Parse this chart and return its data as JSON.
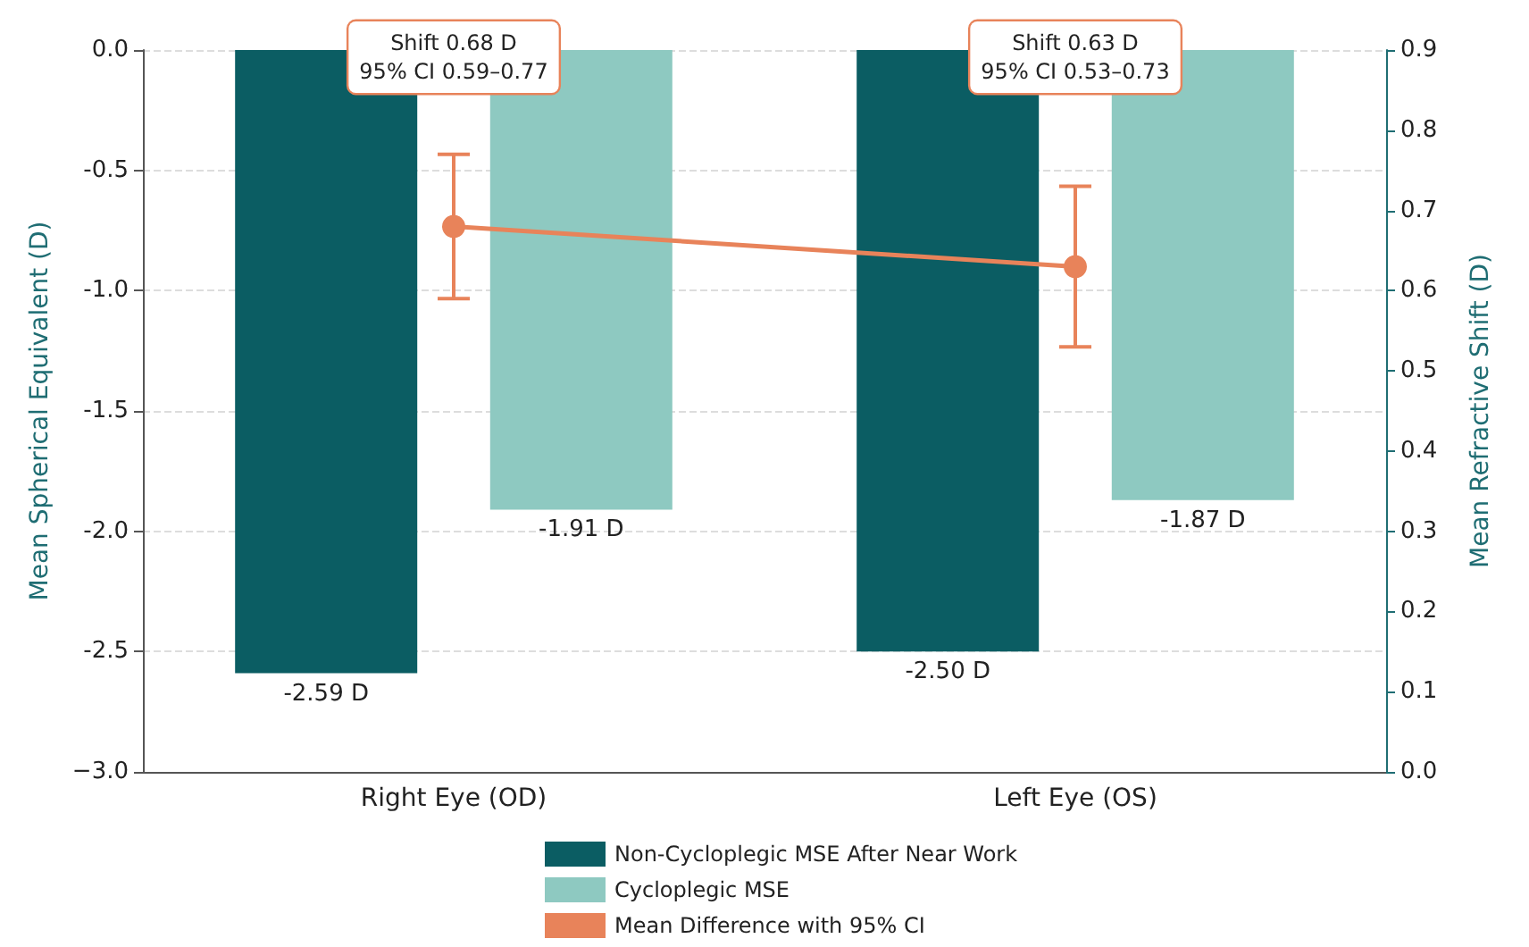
{
  "chart_data": {
    "type": "bar",
    "categories": [
      "Right Eye (OD)",
      "Left Eye (OS)"
    ],
    "series": [
      {
        "name": "Non-Cycloplegic MSE After Near Work",
        "color": "#0b5d63",
        "values": [
          -2.59,
          -2.5
        ],
        "value_labels": [
          "-2.59 D",
          "-2.50 D"
        ]
      },
      {
        "name": "Cycloplegic MSE",
        "color": "#8ec9c1",
        "values": [
          -1.91,
          -1.87
        ],
        "value_labels": [
          "-1.91 D",
          "-1.87 D"
        ]
      },
      {
        "name": "Mean Difference with 95% CI",
        "type": "line",
        "axis": "y2",
        "color": "#e8835a",
        "values": [
          0.68,
          0.63
        ],
        "errors": [
          [
            0.59,
            0.77
          ],
          [
            0.53,
            0.73
          ]
        ]
      }
    ],
    "ylabel": "Mean Spherical Equivalent (D)",
    "y2label": "Mean Refractive Shift (D)",
    "ylim": [
      -3,
      0
    ],
    "yticks": [
      {
        "value": -3,
        "label": "−3.0"
      },
      {
        "value": -2.5,
        "label": "-2.5"
      },
      {
        "value": -2,
        "label": "-2.0"
      },
      {
        "value": -1.5,
        "label": "-1.5"
      },
      {
        "value": -1,
        "label": "-1.0"
      },
      {
        "value": -0.5,
        "label": "-0.5"
      },
      {
        "value": 0,
        "label": "0.0"
      }
    ],
    "y2lim": [
      0,
      0.9
    ],
    "y2ticks": [
      {
        "value": 0,
        "label": "0.0"
      },
      {
        "value": 0.1,
        "label": "0.1"
      },
      {
        "value": 0.2,
        "label": "0.2"
      },
      {
        "value": 0.3,
        "label": "0.3"
      },
      {
        "value": 0.4,
        "label": "0.4"
      },
      {
        "value": 0.5,
        "label": "0.5"
      },
      {
        "value": 0.6,
        "label": "0.6"
      },
      {
        "value": 0.7,
        "label": "0.7"
      },
      {
        "value": 0.8,
        "label": "0.8"
      },
      {
        "value": 0.9,
        "label": "0.9"
      }
    ],
    "annotations": [
      "Shift 0.68 D\n95% CI 0.59–0.77",
      "Shift 0.63 D\n95% CI 0.53–0.73"
    ],
    "grid": "y",
    "legend": "bottom",
    "marker": "circle",
    "line_style": "solid"
  }
}
